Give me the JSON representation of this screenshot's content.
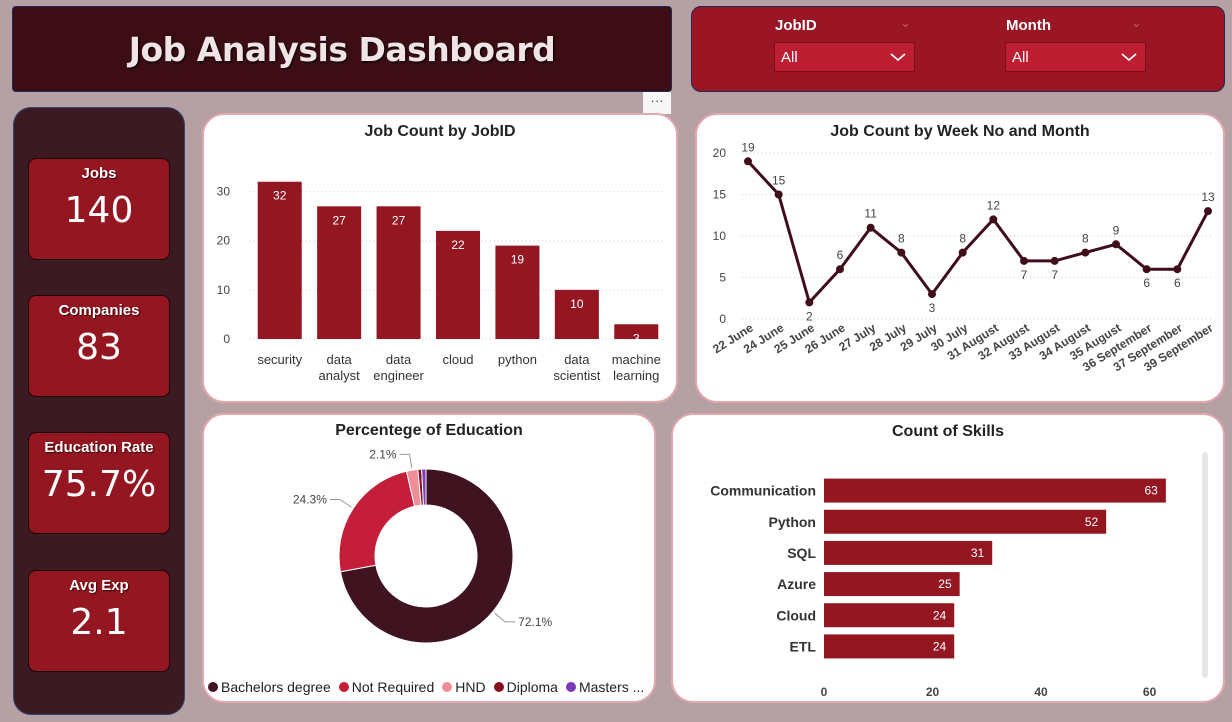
{
  "header": {
    "title": "Job Analysis Dashboard"
  },
  "filters": [
    {
      "label": "JobID",
      "value": "All"
    },
    {
      "label": "Month",
      "value": "All"
    }
  ],
  "more_options": "···",
  "kpis": [
    {
      "label": "Jobs",
      "value": "140"
    },
    {
      "label": "Companies",
      "value": "83"
    },
    {
      "label": "Education Rate",
      "value": "75.7%"
    },
    {
      "label": "Avg Exp",
      "value": "2.1"
    }
  ],
  "colors": {
    "primary": "#931621",
    "dark": "#3c1a22",
    "line": "#3f0e1a",
    "not_required": "#c41e3a",
    "hnd": "#ee8f98",
    "masters": "#7b3ab8"
  },
  "chart_data": [
    {
      "type": "bar",
      "title": "Job Count by JobID",
      "categories": [
        [
          "security"
        ],
        [
          "data",
          "analyst"
        ],
        [
          "data",
          "engineer"
        ],
        [
          "cloud"
        ],
        [
          "python"
        ],
        [
          "data",
          "scientist"
        ],
        [
          "machine",
          "learning"
        ]
      ],
      "values": [
        32,
        27,
        27,
        22,
        19,
        10,
        3
      ],
      "yticks": [
        0,
        10,
        20,
        30
      ],
      "ylim": [
        0,
        35
      ]
    },
    {
      "type": "line",
      "title": "Job Count by Week No and Month",
      "categories": [
        "22 June",
        "24 June",
        "25 June",
        "26 June",
        "27 July",
        "28 July",
        "29 July",
        "30 July",
        "31 August",
        "32 August",
        "33 August",
        "34 August",
        "35 August",
        "36 September",
        "37 September",
        "39 September"
      ],
      "values": [
        19,
        15,
        2,
        6,
        11,
        8,
        3,
        8,
        12,
        7,
        7,
        8,
        9,
        6,
        6,
        13
      ],
      "yticks": [
        0,
        5,
        10,
        15,
        20
      ],
      "ylim": [
        0,
        20
      ]
    },
    {
      "type": "pie",
      "title": "Percentege of Education",
      "slices": [
        {
          "label": "Bachelors degree",
          "value": 72.1,
          "color": "#3f1420",
          "display": "72.1%"
        },
        {
          "label": "Not Required",
          "value": 24.3,
          "color": "#c41e3a",
          "display": "24.3%"
        },
        {
          "label": "HND",
          "value": 2.1,
          "color": "#ee8f98",
          "display": "2.1%"
        },
        {
          "label": "Diploma",
          "value": 0.7,
          "color": "#8a0f1e",
          "display": ""
        },
        {
          "label": "Masters ...",
          "value": 0.8,
          "color": "#7b3ab8",
          "display": ""
        }
      ]
    },
    {
      "type": "bar",
      "orientation": "horizontal",
      "title": "Count of Skills",
      "categories": [
        "Communication",
        "Python",
        "SQL",
        "Azure",
        "Cloud",
        "ETL"
      ],
      "values": [
        63,
        52,
        31,
        25,
        24,
        24
      ],
      "xticks": [
        0,
        20,
        40,
        60
      ],
      "xlim": [
        0,
        68
      ]
    }
  ]
}
